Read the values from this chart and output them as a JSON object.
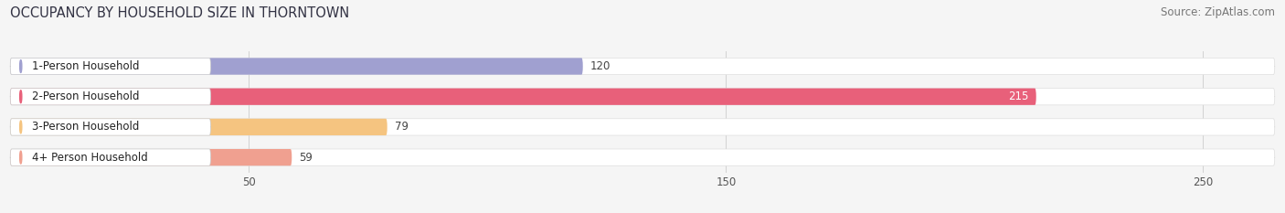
{
  "title": "OCCUPANCY BY HOUSEHOLD SIZE IN THORNTOWN",
  "source": "Source: ZipAtlas.com",
  "categories": [
    "1-Person Household",
    "2-Person Household",
    "3-Person Household",
    "4+ Person Household"
  ],
  "values": [
    120,
    215,
    79,
    59
  ],
  "bar_colors": [
    "#a0a0d0",
    "#e8607a",
    "#f5c480",
    "#f0a090"
  ],
  "value_label_colors": [
    "#444444",
    "#ffffff",
    "#444444",
    "#444444"
  ],
  "xlim": [
    0,
    265
  ],
  "xticks": [
    50,
    150,
    250
  ],
  "background_color": "#f5f5f5",
  "bar_bg_color": "#e8e8e8",
  "title_fontsize": 10.5,
  "source_fontsize": 8.5,
  "label_fontsize": 8.5,
  "bar_height": 0.55
}
